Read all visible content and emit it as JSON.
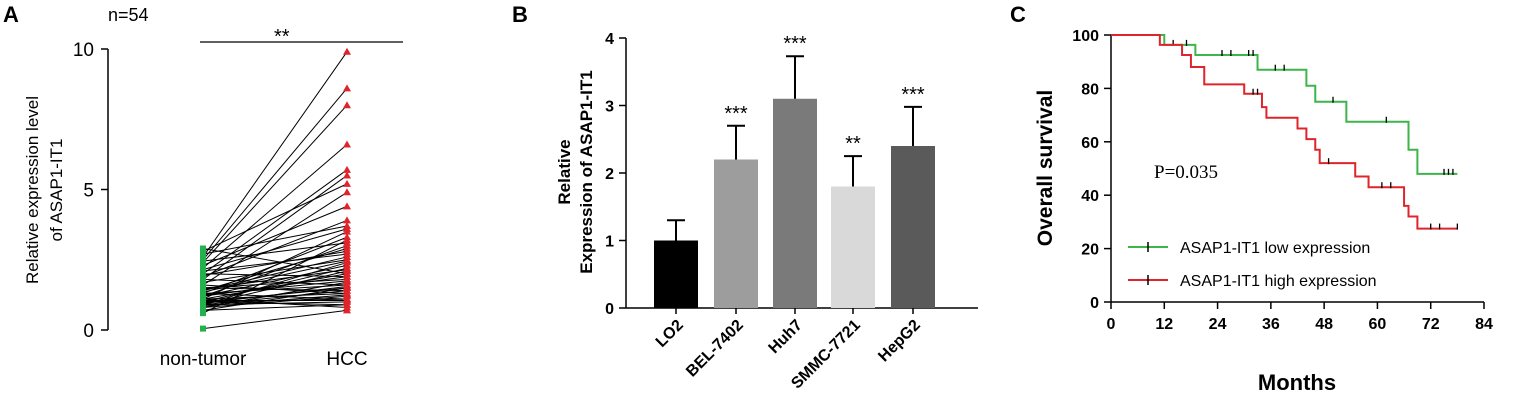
{
  "chart_data": [
    {
      "panel": "A",
      "type": "scatter",
      "annotation": "n=54",
      "significance": "**",
      "ylabel_line1": "Relative expression level",
      "ylabel_line2": "of ASAP1-IT1",
      "categories": [
        "non-tumor",
        "HCC"
      ],
      "yticks": [
        "0",
        "5",
        "10"
      ],
      "ylim": [
        0,
        10
      ],
      "colors": {
        "non_tumor": "#22b14c",
        "hcc": "#e0242c",
        "line": "#000000"
      },
      "pairs": [
        [
          0.05,
          0.7
        ],
        [
          0.8,
          1.2
        ],
        [
          0.9,
          1.0
        ],
        [
          1.0,
          1.5
        ],
        [
          1.1,
          1.3
        ],
        [
          1.2,
          1.9
        ],
        [
          0.7,
          0.9
        ],
        [
          0.9,
          1.4
        ],
        [
          1.0,
          2.2
        ],
        [
          1.3,
          1.6
        ],
        [
          1.4,
          2.6
        ],
        [
          1.2,
          3.0
        ],
        [
          1.0,
          1.1
        ],
        [
          0.8,
          1.7
        ],
        [
          1.1,
          2.0
        ],
        [
          1.5,
          1.8
        ],
        [
          0.9,
          2.4
        ],
        [
          1.3,
          3.3
        ],
        [
          2.6,
          9.9
        ],
        [
          2.5,
          8.6
        ],
        [
          2.4,
          8.0
        ],
        [
          2.2,
          6.6
        ],
        [
          2.0,
          5.7
        ],
        [
          1.8,
          5.5
        ],
        [
          2.8,
          5.2
        ],
        [
          1.6,
          4.9
        ],
        [
          2.3,
          4.4
        ],
        [
          1.9,
          3.9
        ],
        [
          2.7,
          3.7
        ],
        [
          1.1,
          3.5
        ],
        [
          0.6,
          3.2
        ],
        [
          1.4,
          2.9
        ],
        [
          2.1,
          2.7
        ],
        [
          1.7,
          2.5
        ],
        [
          1.2,
          2.3
        ],
        [
          0.9,
          2.1
        ],
        [
          1.5,
          1.4
        ],
        [
          2.9,
          2.0
        ],
        [
          1.0,
          0.9
        ],
        [
          1.6,
          1.3
        ],
        [
          1.3,
          1.1
        ],
        [
          0.7,
          1.5
        ],
        [
          2.0,
          1.9
        ],
        [
          1.8,
          1.6
        ],
        [
          1.1,
          0.8
        ],
        [
          0.85,
          1.25
        ],
        [
          1.25,
          1.75
        ],
        [
          1.45,
          2.15
        ],
        [
          2.45,
          3.1
        ],
        [
          1.95,
          2.8
        ],
        [
          1.05,
          1.05
        ],
        [
          0.95,
          1.55
        ],
        [
          1.35,
          2.45
        ],
        [
          2.15,
          3.6
        ]
      ]
    },
    {
      "panel": "B",
      "type": "bar",
      "ylabel_line1": "Relative",
      "ylabel_line2": "Expression of ASAP1-IT1",
      "categories": [
        "LO2",
        "BEL-7402",
        "Huh7",
        "SMMC-7721",
        "HepG2"
      ],
      "values": [
        1.0,
        2.2,
        3.1,
        1.8,
        2.4
      ],
      "errors": [
        0.3,
        0.5,
        0.63,
        0.45,
        0.58
      ],
      "significance": [
        "",
        "***",
        "***",
        "**",
        "***"
      ],
      "colors": [
        "#000000",
        "#9d9d9d",
        "#7a7a7a",
        "#d9d9d9",
        "#5a5a5a"
      ],
      "yticks": [
        "0",
        "1",
        "2",
        "3",
        "4"
      ],
      "ylim": [
        0,
        4
      ]
    },
    {
      "panel": "C",
      "type": "line",
      "xlabel": "Months",
      "ylabel": "Overall survival",
      "annotation": "P=0.035",
      "xticks": [
        "0",
        "12",
        "24",
        "36",
        "48",
        "60",
        "72",
        "84"
      ],
      "yticks": [
        "0",
        "20",
        "40",
        "60",
        "80",
        "100"
      ],
      "xlim": [
        0,
        84
      ],
      "ylim": [
        0,
        100
      ],
      "series": [
        {
          "name": "ASAP1-IT1 low expression",
          "color": "#3cb54a",
          "steps": [
            [
              0,
              100
            ],
            [
              12,
              100
            ],
            [
              12,
              96.3
            ],
            [
              19,
              96.3
            ],
            [
              19,
              92.5
            ],
            [
              33,
              92.5
            ],
            [
              33,
              87
            ],
            [
              44,
              87
            ],
            [
              44,
              81
            ],
            [
              46,
              81
            ],
            [
              46,
              75
            ],
            [
              53,
              75
            ],
            [
              53,
              67.5
            ],
            [
              67,
              67.5
            ],
            [
              67,
              57
            ],
            [
              69,
              57
            ],
            [
              69,
              48
            ],
            [
              78,
              48
            ]
          ],
          "censors": [
            [
              14,
              96.3
            ],
            [
              17,
              96.3
            ],
            [
              25,
              92.5
            ],
            [
              27,
              92.5
            ],
            [
              31,
              92.5
            ],
            [
              32,
              92.5
            ],
            [
              37,
              87
            ],
            [
              39,
              87
            ],
            [
              50,
              75
            ],
            [
              62,
              67.5
            ],
            [
              75,
              48
            ],
            [
              76,
              48
            ],
            [
              77,
              48
            ]
          ]
        },
        {
          "name": "ASAP1-IT1 high expression",
          "color": "#e0242c",
          "steps": [
            [
              0,
              100
            ],
            [
              11,
              100
            ],
            [
              11,
              96.3
            ],
            [
              16,
              96.3
            ],
            [
              16,
              92.5
            ],
            [
              18,
              92.5
            ],
            [
              18,
              88
            ],
            [
              21,
              88
            ],
            [
              21,
              81.5
            ],
            [
              30,
              81.5
            ],
            [
              30,
              78
            ],
            [
              34,
              78
            ],
            [
              34,
              73
            ],
            [
              35,
              73
            ],
            [
              35,
              69
            ],
            [
              42,
              69
            ],
            [
              42,
              65
            ],
            [
              44,
              65
            ],
            [
              44,
              61
            ],
            [
              46,
              61
            ],
            [
              46,
              57
            ],
            [
              47,
              57
            ],
            [
              47,
              52
            ],
            [
              55,
              52
            ],
            [
              55,
              47
            ],
            [
              58,
              47
            ],
            [
              58,
              43
            ],
            [
              66,
              43
            ],
            [
              66,
              36
            ],
            [
              67,
              36
            ],
            [
              67,
              32
            ],
            [
              69,
              32
            ],
            [
              69,
              27.5
            ],
            [
              78,
              27.5
            ]
          ],
          "censors": [
            [
              32,
              78
            ],
            [
              33,
              78
            ],
            [
              49,
              52
            ],
            [
              61,
              43
            ],
            [
              63,
              43
            ],
            [
              72,
              27.5
            ],
            [
              74,
              27.5
            ],
            [
              78,
              27.5
            ]
          ]
        }
      ]
    }
  ],
  "panels": {
    "a": "A",
    "b": "B",
    "c": "C"
  }
}
